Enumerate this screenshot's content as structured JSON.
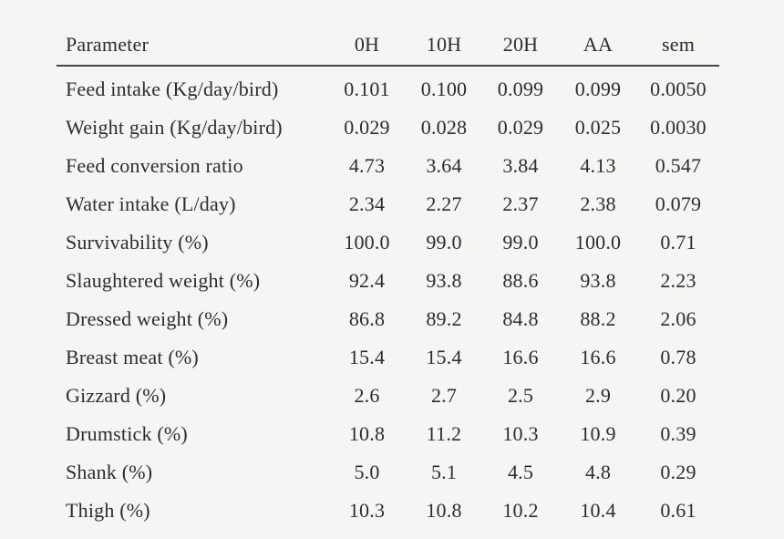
{
  "colors": {
    "background": "#f5f5f4",
    "text": "#2d2d2d",
    "header_rule": "#454545"
  },
  "table": {
    "columns": [
      "Parameter",
      "0H",
      "10H",
      "20H",
      "AA",
      "sem"
    ],
    "rows": [
      {
        "parameter": "Feed intake (Kg/day/bird)",
        "values": [
          "0.101",
          "0.100",
          "0.099",
          "0.099",
          "0.0050"
        ]
      },
      {
        "parameter": "Weight gain (Kg/day/bird)",
        "values": [
          "0.029",
          "0.028",
          "0.029",
          "0.025",
          "0.0030"
        ]
      },
      {
        "parameter": "Feed conversion ratio",
        "values": [
          "4.73",
          "3.64",
          "3.84",
          "4.13",
          "0.547"
        ]
      },
      {
        "parameter": "Water intake (L/day)",
        "values": [
          "2.34",
          "2.27",
          "2.37",
          "2.38",
          "0.079"
        ]
      },
      {
        "parameter": "Survivability (%)",
        "values": [
          "100.0",
          "99.0",
          "99.0",
          "100.0",
          "0.71"
        ]
      },
      {
        "parameter": "Slaughtered weight (%)",
        "values": [
          "92.4",
          "93.8",
          "88.6",
          "93.8",
          "2.23"
        ]
      },
      {
        "parameter": "Dressed weight (%)",
        "values": [
          "86.8",
          "89.2",
          "84.8",
          "88.2",
          "2.06"
        ]
      },
      {
        "parameter": "Breast meat (%)",
        "values": [
          "15.4",
          "15.4",
          "16.6",
          "16.6",
          "0.78"
        ]
      },
      {
        "parameter": "Gizzard (%)",
        "values": [
          "2.6",
          "2.7",
          "2.5",
          "2.9",
          "0.20"
        ]
      },
      {
        "parameter": "Drumstick (%)",
        "values": [
          "10.8",
          "11.2",
          "10.3",
          "10.9",
          "0.39"
        ]
      },
      {
        "parameter": "Shank (%)",
        "values": [
          "5.0",
          "5.1",
          "4.5",
          "4.8",
          "0.29"
        ]
      },
      {
        "parameter": "Thigh (%)",
        "values": [
          "10.3",
          "10.8",
          "10.2",
          "10.4",
          "0.61"
        ]
      }
    ]
  }
}
